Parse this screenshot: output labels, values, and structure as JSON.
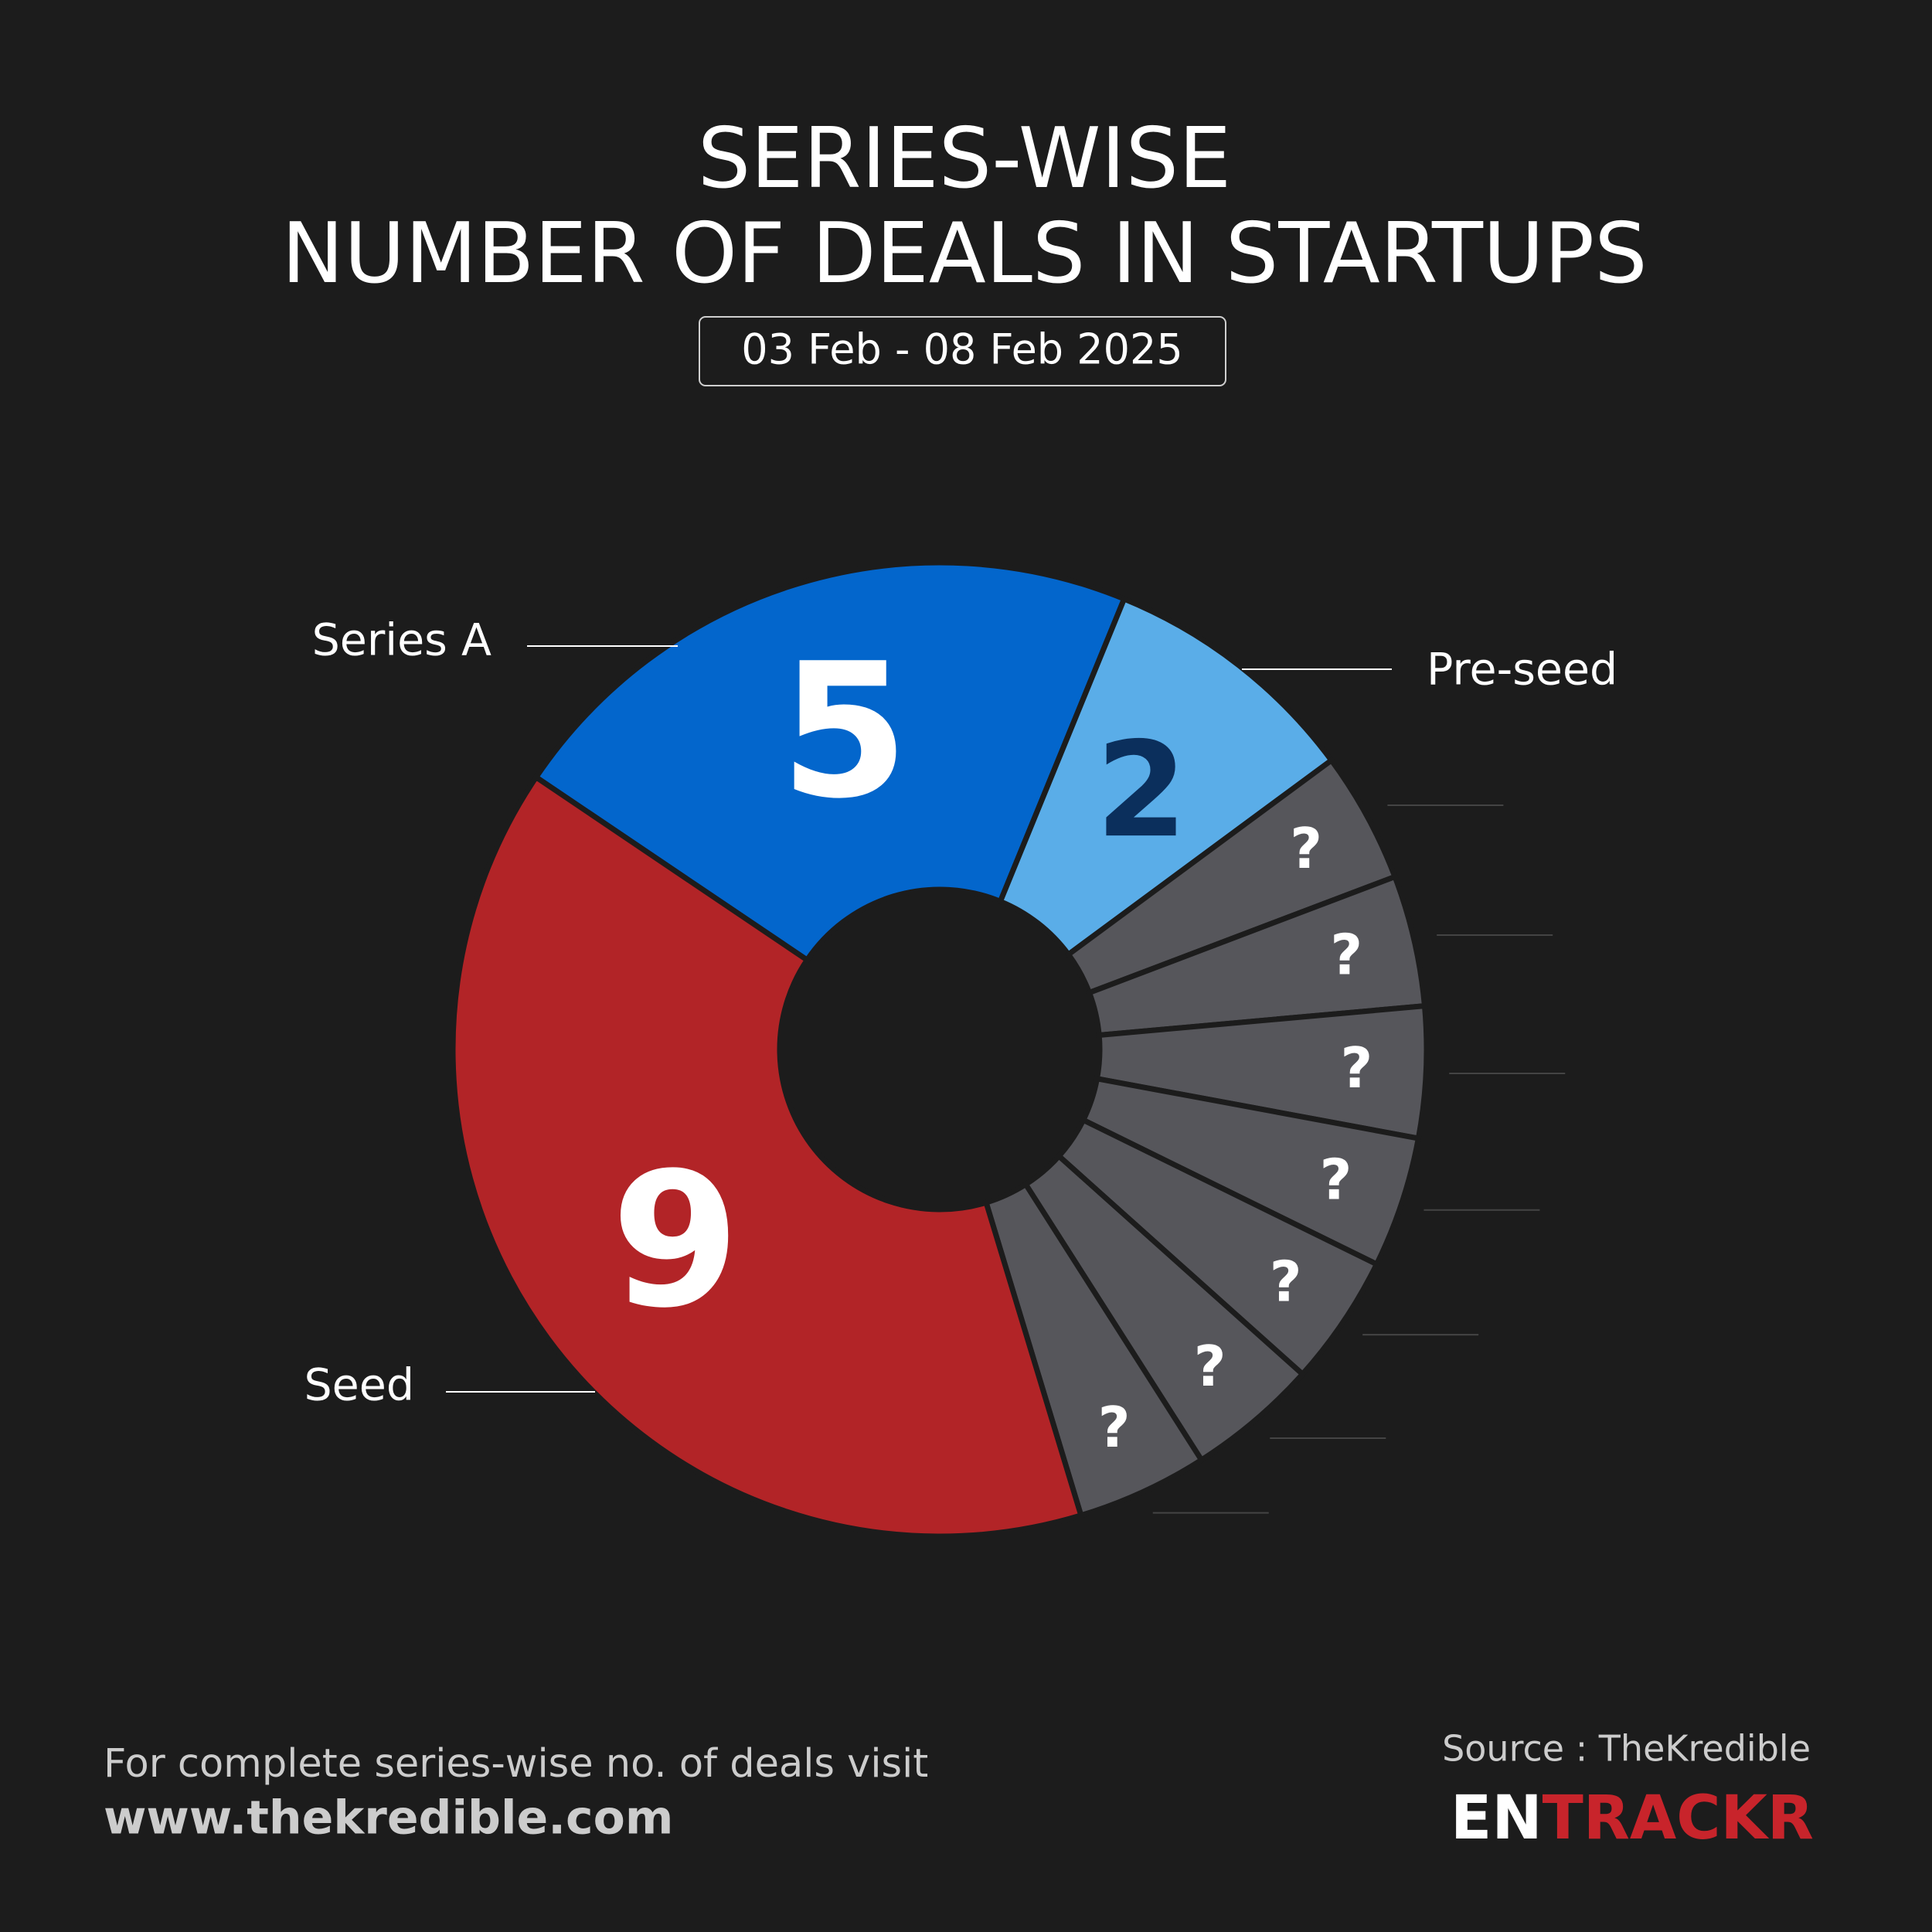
{
  "chart_data": {
    "type": "donut",
    "title": [
      "SERIES-WISE",
      "NUMBER OF DEALS IN STARTUPS"
    ],
    "subtitle": "03 Feb - 08 Feb 2025",
    "categories": [
      "Series A",
      "Pre-seed",
      null,
      null,
      null,
      null,
      null,
      null,
      null,
      "Seed"
    ],
    "values": [
      5,
      2,
      1,
      1,
      1,
      1,
      1,
      1,
      1,
      9
    ],
    "value_labels": [
      "5",
      "2",
      "?",
      "?",
      "?",
      "?",
      "?",
      "?",
      "?",
      "9"
    ],
    "colors": [
      "#0366cc",
      "#5aade8",
      "#56565b",
      "#56565b",
      "#56565b",
      "#56565b",
      "#56565b",
      "#56565b",
      "#56565b",
      "#b22427"
    ],
    "value_label_colors": [
      "#ffffff",
      "#0b2f5c",
      "#ffffff",
      "#ffffff",
      "#ffffff",
      "#ffffff",
      "#ffffff",
      "#ffffff",
      "#ffffff",
      "#ffffff"
    ]
  },
  "footer": {
    "note": "For complete series-wise no. of deals visit",
    "url": "www.thekredible.com",
    "source": "Source : TheKredible",
    "brand": [
      "EN",
      "TRACKR"
    ]
  }
}
